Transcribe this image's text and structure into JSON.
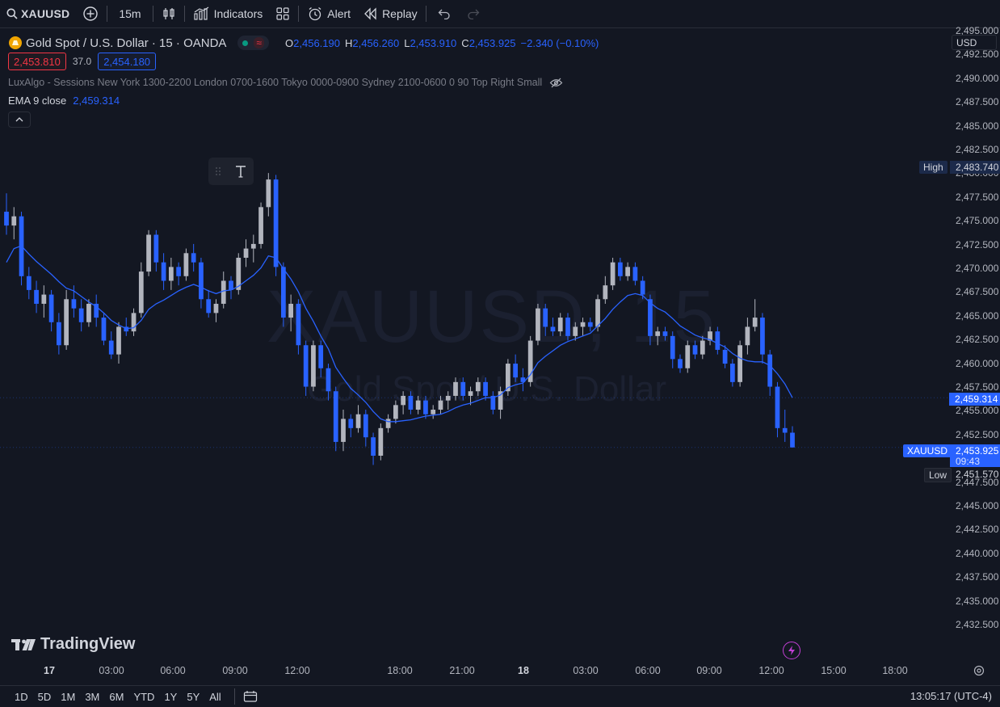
{
  "toolbar": {
    "symbol": "XAUUSD",
    "interval": "15m",
    "indicators_label": "Indicators",
    "alert_label": "Alert",
    "replay_label": "Replay"
  },
  "legend": {
    "title": "Gold Spot / U.S. Dollar · 15 · OANDA",
    "o_key": "O",
    "o_val": "2,456.190",
    "h_key": "H",
    "h_val": "2,456.260",
    "l_key": "L",
    "l_val": "2,453.910",
    "c_key": "C",
    "c_val": "2,453.925",
    "change": "−2.340 (−0.10%)",
    "sell_price": "2,453.810",
    "spread": "37.0",
    "buy_price": "2,454.180",
    "indicator_text": "LuxAlgo - Sessions New York 1300-2200 London 0700-1600 Tokyo 0000-0900 Sydney 2100-0600 0 90 Top Right Small",
    "ema_label": "EMA 9 close",
    "ema_value": "2,459.314"
  },
  "watermark": {
    "symbol": "XAUUSD, 15",
    "name": "Gold Spot / U.S. Dollar"
  },
  "price_axis": {
    "currency": "USD",
    "ticks": [
      "2,495.000",
      "2,492.500",
      "2,490.000",
      "2,487.500",
      "2,485.000",
      "2,482.500",
      "2,480.000",
      "2,477.500",
      "2,475.000",
      "2,472.500",
      "2,470.000",
      "2,467.500",
      "2,465.000",
      "2,462.500",
      "2,460.000",
      "2,457.500",
      "2,455.000",
      "2,452.500",
      "2,450.000",
      "2,447.500",
      "2,445.000",
      "2,442.500",
      "2,440.000",
      "2,437.500",
      "2,435.000",
      "2,432.500"
    ],
    "high_label": "High",
    "high_value": "2,483.740",
    "low_label": "Low",
    "low_value": "2,451.570",
    "ema_value": "2,459.314",
    "symbol_tag": "XAUUSD",
    "current_value": "2,453.925",
    "countdown": "09:43"
  },
  "time_axis": {
    "labels": [
      {
        "text": "17",
        "bold": true
      },
      {
        "text": "03:00"
      },
      {
        "text": "06:00"
      },
      {
        "text": "09:00"
      },
      {
        "text": "12:00"
      },
      {
        "text": "18:00"
      },
      {
        "text": "21:00"
      },
      {
        "text": "18",
        "bold": true
      },
      {
        "text": "03:00"
      },
      {
        "text": "06:00"
      },
      {
        "text": "09:00"
      },
      {
        "text": "12:00"
      },
      {
        "text": "15:00"
      },
      {
        "text": "18:00"
      }
    ]
  },
  "bottom": {
    "ranges": [
      "1D",
      "5D",
      "1M",
      "3M",
      "6M",
      "YTD",
      "1Y",
      "5Y",
      "All"
    ],
    "clock": "13:05:17 (UTC-4)"
  },
  "branding": {
    "logo_text": "TradingView"
  },
  "chart_data": {
    "type": "candlestick",
    "ylim": [
      2431.5,
      2496.0
    ],
    "series_ema": "EMA 9 close",
    "colors": {
      "up": "#b2b5be",
      "down": "#2962ff",
      "ema": "#2962ff"
    },
    "candles": [
      [
        2479.5,
        2481.5,
        2477.0,
        2478.0
      ],
      [
        2478.0,
        2480.0,
        2476.5,
        2479.0
      ],
      [
        2479.0,
        2479.5,
        2471.5,
        2472.5
      ],
      [
        2472.5,
        2473.5,
        2470.0,
        2471.0
      ],
      [
        2471.0,
        2472.0,
        2468.5,
        2469.5
      ],
      [
        2469.5,
        2471.5,
        2468.0,
        2470.5
      ],
      [
        2470.5,
        2471.0,
        2466.5,
        2467.5
      ],
      [
        2467.5,
        2468.5,
        2464.0,
        2465.0
      ],
      [
        2465.0,
        2471.0,
        2464.5,
        2470.0
      ],
      [
        2470.0,
        2471.5,
        2468.0,
        2469.0
      ],
      [
        2469.0,
        2470.0,
        2466.5,
        2467.5
      ],
      [
        2467.5,
        2470.0,
        2467.0,
        2469.5
      ],
      [
        2469.5,
        2470.5,
        2467.0,
        2468.0
      ],
      [
        2468.0,
        2468.5,
        2465.0,
        2465.5
      ],
      [
        2465.5,
        2466.5,
        2463.5,
        2464.0
      ],
      [
        2464.0,
        2467.5,
        2463.0,
        2467.0
      ],
      [
        2467.0,
        2468.0,
        2466.0,
        2466.5
      ],
      [
        2466.5,
        2469.0,
        2466.0,
        2468.5
      ],
      [
        2468.5,
        2474.0,
        2468.0,
        2473.0
      ],
      [
        2473.0,
        2477.5,
        2472.5,
        2477.0
      ],
      [
        2477.0,
        2477.5,
        2473.0,
        2474.0
      ],
      [
        2474.0,
        2475.0,
        2471.0,
        2472.0
      ],
      [
        2472.0,
        2474.5,
        2471.0,
        2473.5
      ],
      [
        2473.5,
        2474.0,
        2471.5,
        2472.5
      ],
      [
        2472.5,
        2475.5,
        2472.0,
        2475.0
      ],
      [
        2475.0,
        2476.0,
        2473.0,
        2474.0
      ],
      [
        2474.0,
        2474.5,
        2469.0,
        2470.0
      ],
      [
        2470.0,
        2471.0,
        2468.0,
        2468.5
      ],
      [
        2468.5,
        2470.0,
        2467.5,
        2469.5
      ],
      [
        2469.5,
        2473.0,
        2469.0,
        2472.0
      ],
      [
        2472.0,
        2472.5,
        2470.0,
        2471.0
      ],
      [
        2471.0,
        2475.0,
        2470.5,
        2474.5
      ],
      [
        2474.5,
        2476.5,
        2473.5,
        2475.5
      ],
      [
        2475.5,
        2477.0,
        2474.0,
        2476.0
      ],
      [
        2476.0,
        2480.5,
        2475.5,
        2480.0
      ],
      [
        2480.0,
        2483.7,
        2479.0,
        2483.0
      ],
      [
        2483.0,
        2483.5,
        2472.5,
        2473.5
      ],
      [
        2473.5,
        2474.0,
        2467.0,
        2468.0
      ],
      [
        2468.0,
        2470.5,
        2466.5,
        2469.5
      ],
      [
        2469.5,
        2470.0,
        2464.0,
        2465.0
      ],
      [
        2465.0,
        2465.5,
        2459.5,
        2460.5
      ],
      [
        2460.5,
        2465.5,
        2460.0,
        2465.0
      ],
      [
        2465.0,
        2465.5,
        2461.5,
        2462.5
      ],
      [
        2462.5,
        2463.0,
        2459.0,
        2460.0
      ],
      [
        2460.0,
        2460.5,
        2453.5,
        2454.5
      ],
      [
        2454.5,
        2458.0,
        2453.5,
        2457.0
      ],
      [
        2457.0,
        2457.5,
        2455.0,
        2456.0
      ],
      [
        2456.0,
        2458.5,
        2455.5,
        2457.5
      ],
      [
        2457.5,
        2458.0,
        2454.0,
        2455.0
      ],
      [
        2455.0,
        2455.5,
        2452.0,
        2453.0
      ],
      [
        2453.0,
        2456.5,
        2452.5,
        2456.0
      ],
      [
        2456.0,
        2457.5,
        2455.5,
        2457.0
      ],
      [
        2457.0,
        2459.0,
        2456.5,
        2458.5
      ],
      [
        2458.5,
        2460.0,
        2457.5,
        2459.5
      ],
      [
        2459.5,
        2460.0,
        2457.5,
        2458.0
      ],
      [
        2458.0,
        2459.5,
        2457.5,
        2459.0
      ],
      [
        2459.0,
        2459.5,
        2457.0,
        2457.5
      ],
      [
        2457.5,
        2458.5,
        2457.0,
        2458.0
      ],
      [
        2458.0,
        2459.5,
        2457.5,
        2459.0
      ],
      [
        2459.0,
        2460.0,
        2458.0,
        2459.5
      ],
      [
        2459.5,
        2461.5,
        2459.0,
        2461.0
      ],
      [
        2461.0,
        2461.5,
        2459.0,
        2459.5
      ],
      [
        2459.5,
        2460.5,
        2458.5,
        2460.0
      ],
      [
        2460.0,
        2461.5,
        2459.5,
        2461.0
      ],
      [
        2461.0,
        2461.5,
        2459.0,
        2459.5
      ],
      [
        2459.5,
        2460.0,
        2457.5,
        2458.0
      ],
      [
        2458.0,
        2460.5,
        2457.0,
        2460.0
      ],
      [
        2460.0,
        2463.5,
        2459.5,
        2463.0
      ],
      [
        2463.0,
        2464.0,
        2461.0,
        2461.5
      ],
      [
        2461.5,
        2462.5,
        2460.0,
        2461.0
      ],
      [
        2461.0,
        2466.0,
        2460.5,
        2465.5
      ],
      [
        2465.5,
        2469.5,
        2465.0,
        2469.0
      ],
      [
        2469.0,
        2469.5,
        2466.0,
        2467.0
      ],
      [
        2467.0,
        2468.0,
        2466.0,
        2466.5
      ],
      [
        2466.5,
        2468.5,
        2466.0,
        2468.0
      ],
      [
        2468.0,
        2468.5,
        2465.5,
        2466.0
      ],
      [
        2466.0,
        2467.5,
        2465.5,
        2467.0
      ],
      [
        2467.0,
        2468.0,
        2466.0,
        2467.5
      ],
      [
        2467.5,
        2468.0,
        2466.5,
        2467.0
      ],
      [
        2467.0,
        2470.5,
        2466.5,
        2470.0
      ],
      [
        2470.0,
        2472.5,
        2469.5,
        2471.5
      ],
      [
        2471.5,
        2474.5,
        2471.0,
        2474.0
      ],
      [
        2474.0,
        2474.5,
        2472.0,
        2472.5
      ],
      [
        2472.5,
        2474.0,
        2472.0,
        2473.5
      ],
      [
        2473.5,
        2474.0,
        2471.5,
        2472.0
      ],
      [
        2472.0,
        2472.5,
        2470.0,
        2470.5
      ],
      [
        2470.0,
        2470.5,
        2465.0,
        2466.0
      ],
      [
        2466.0,
        2467.0,
        2465.0,
        2466.5
      ],
      [
        2466.5,
        2467.0,
        2465.5,
        2466.0
      ],
      [
        2466.0,
        2466.5,
        2462.5,
        2463.5
      ],
      [
        2463.5,
        2464.0,
        2462.0,
        2462.5
      ],
      [
        2462.5,
        2465.5,
        2462.0,
        2465.0
      ],
      [
        2465.0,
        2465.5,
        2463.5,
        2464.0
      ],
      [
        2464.0,
        2466.0,
        2463.5,
        2465.5
      ],
      [
        2465.5,
        2467.0,
        2465.0,
        2466.5
      ],
      [
        2466.5,
        2467.0,
        2464.0,
        2464.5
      ],
      [
        2464.5,
        2465.0,
        2462.5,
        2463.0
      ],
      [
        2463.0,
        2463.5,
        2460.5,
        2461.0
      ],
      [
        2461.0,
        2465.5,
        2460.5,
        2465.0
      ],
      [
        2465.0,
        2468.0,
        2464.0,
        2467.0
      ],
      [
        2467.0,
        2470.0,
        2466.5,
        2468.0
      ],
      [
        2468.0,
        2468.5,
        2463.0,
        2464.0
      ],
      [
        2464.0,
        2464.5,
        2459.5,
        2460.5
      ],
      [
        2460.5,
        2461.0,
        2455.0,
        2456.0
      ],
      [
        2456.0,
        2458.0,
        2454.5,
        2455.5
      ],
      [
        2455.5,
        2456.2,
        2453.9,
        2453.9
      ]
    ],
    "ema": [
      2474.0,
      2475.5,
      2475.8,
      2474.9,
      2474.1,
      2473.4,
      2472.7,
      2471.9,
      2471.2,
      2470.9,
      2470.3,
      2469.7,
      2469.2,
      2468.5,
      2467.7,
      2467.2,
      2466.8,
      2466.9,
      2467.7,
      2468.9,
      2469.5,
      2469.9,
      2470.4,
      2470.9,
      2471.3,
      2471.6,
      2471.3,
      2470.9,
      2470.6,
      2470.9,
      2471.0,
      2471.4,
      2472.0,
      2472.6,
      2473.4,
      2474.7,
      2474.5,
      2473.3,
      2472.2,
      2470.8,
      2469.0,
      2467.6,
      2466.0,
      2464.6,
      2462.6,
      2461.4,
      2460.3,
      2459.6,
      2458.8,
      2457.8,
      2457.0,
      2456.7,
      2456.7,
      2456.8,
      2456.9,
      2457.1,
      2457.3,
      2457.4,
      2457.5,
      2457.8,
      2458.2,
      2458.5,
      2458.7,
      2459.0,
      2459.3,
      2459.3,
      2459.6,
      2460.4,
      2460.7,
      2460.9,
      2461.8,
      2463.1,
      2463.8,
      2464.4,
      2465.0,
      2465.4,
      2465.7,
      2466.0,
      2466.3,
      2467.1,
      2467.9,
      2468.9,
      2469.7,
      2470.4,
      2470.6,
      2470.4,
      2469.6,
      2469.0,
      2468.6,
      2467.9,
      2467.1,
      2466.6,
      2466.1,
      2465.8,
      2465.6,
      2465.2,
      2464.8,
      2464.1,
      2463.6,
      2463.3,
      2463.2,
      2463.2,
      2462.8,
      2461.9,
      2460.8,
      2459.3
    ]
  }
}
